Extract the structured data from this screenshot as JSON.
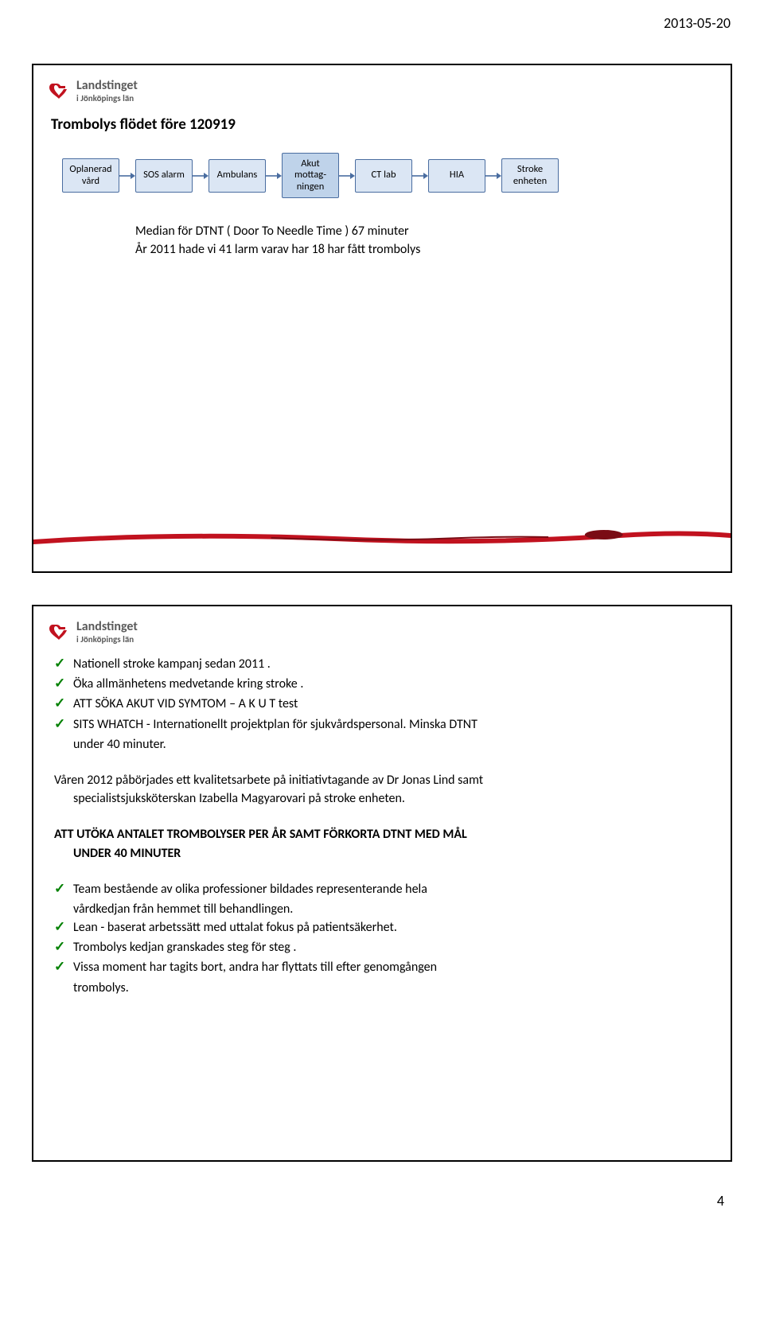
{
  "header": {
    "date": "2013-05-20",
    "page_number": "4"
  },
  "logo": {
    "line1": "Landstinget",
    "line2": "i Jönköpings län",
    "mark_color": "#c1121f"
  },
  "slide1": {
    "title": "Trombolys flödet före 120919",
    "flow_boxes": [
      {
        "label": "Oplanerad\nvård",
        "bg": "#dbe6f4",
        "border": "#4a6da0"
      },
      {
        "label": "SOS alarm",
        "bg": "#dbe6f4",
        "border": "#4a6da0"
      },
      {
        "label": "Ambulans",
        "bg": "#dbe6f4",
        "border": "#4a6da0"
      },
      {
        "label": "Akut\nmottag-\nningen",
        "bg": "#bfd3ea",
        "border": "#4a6da0"
      },
      {
        "label": "CT lab",
        "bg": "#dbe6f4",
        "border": "#4a6da0"
      },
      {
        "label": "HIA",
        "bg": "#dbe6f4",
        "border": "#4a6da0"
      },
      {
        "label": "Stroke\nenheten",
        "bg": "#dbe6f4",
        "border": "#4a6da0"
      }
    ],
    "arrow_color": "#4a6da0",
    "median_line1": "Median för DTNT ( Door To Needle Time ) 67 minuter",
    "median_line2": "År 2011 hade vi 41 larm varav har 18 har fått trombolys"
  },
  "slide2": {
    "bullets1": [
      "Nationell stroke kampanj sedan 2011 .",
      "Öka allmänhetens medvetande kring stroke .",
      "ATT SÖKA AKUT VID SYMTOM – A K U T  test",
      " SITS WHATCH - Internationellt  projektplan för sjukvårdspersonal. Minska DTNT",
      "__cont__under 40 minuter."
    ],
    "para1_line1": "Våren 2012 påbörjades ett kvalitetsarbete på initiativtagande av Dr Jonas Lind samt",
    "para1_line2": "specialistsjuksköterskan Izabella Magyarovari på stroke enheten.",
    "bold_line1": "ATT UTÖKA ANTALET TROMBOLYSER  PER ÅR SAMT FÖRKORTA DTNT MED MÅL",
    "bold_line2": "UNDER 40 MINUTER",
    "bullets2": [
      "Team bestående av olika professioner bildades representerande  hela",
      "__cont__vårdkedjan från hemmet till behandlingen.",
      "Lean - baserat arbetssätt med uttalat fokus på patientsäkerhet.",
      "Trombolys kedjan granskades steg för steg .",
      "Vissa moment har tagits bort, andra har flyttats till efter genomgången",
      "__cont__trombolys."
    ]
  },
  "colors": {
    "check": "#008000",
    "ribbon": "#c1121f",
    "ribbon_shadow": "#7a0c14"
  }
}
